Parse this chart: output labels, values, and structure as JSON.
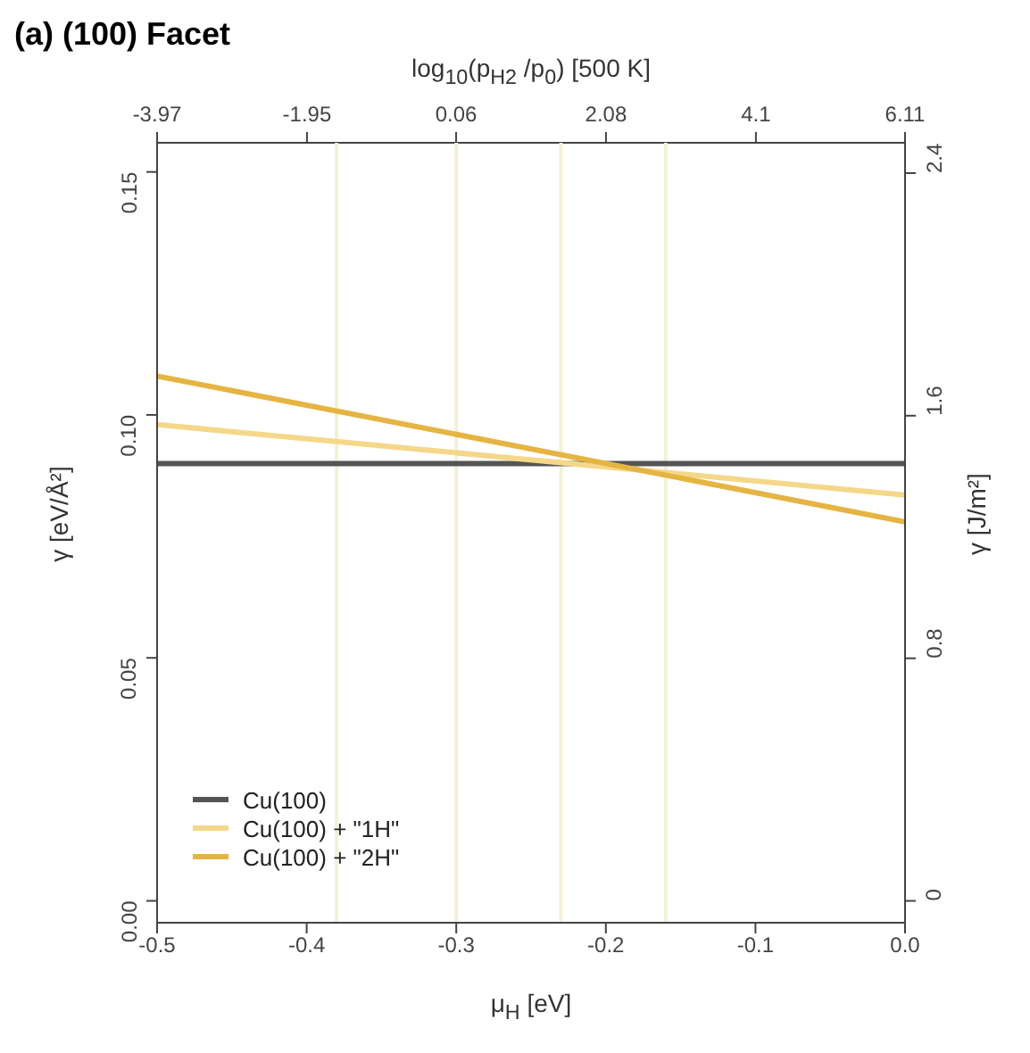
{
  "chart_data": {
    "type": "line",
    "title": "(a) (100) Facet",
    "xlabel": "μ$_{H}$ [eV]",
    "ylabel": "γ [eV/Å²]",
    "y2label": "γ [J/m²]",
    "x2label": "log$_{10}$(p$_{H2}$ /p$_{0}$) [500 K]",
    "x": [
      -0.5,
      0
    ],
    "series": [
      {
        "name": "Cu(100)",
        "color": "#555555",
        "values": [
          0.09,
          0.09
        ]
      },
      {
        "name": "Cu(100) + \"1H\"",
        "color": "#f5d78a",
        "values": [
          0.098,
          0.0835
        ]
      },
      {
        "name": "Cu(100) + \"2H\"",
        "color": "#e6b443",
        "values": [
          0.108,
          0.078
        ]
      }
    ],
    "xlim": [
      -0.5,
      0
    ],
    "xticks": [
      -0.5,
      -0.4,
      -0.3,
      -0.2,
      -0.1,
      {
        "value": 0,
        "label": "0.0"
      }
    ],
    "x2lim": [
      -3.97,
      6.11
    ],
    "x2ticks": [
      -3.97,
      -1.95,
      0.06,
      2.08,
      4.1,
      6.11
    ],
    "ylim": [
      -0.0045,
      0.156
    ],
    "yticks": [
      {
        "value": 0,
        "label": "0.00"
      },
      0.05,
      {
        "value": 0.1,
        "label": "0.10"
      },
      0.15
    ],
    "y2lim": [
      -0.072,
      2.5
    ],
    "y2ticks": [
      0,
      0.8,
      1.6,
      2.4
    ],
    "ref_lines": [
      {
        "axis": "x",
        "value": -0.38,
        "color": "#f3f0d8"
      },
      {
        "axis": "x",
        "value": -0.3,
        "color": "#f3f0d8"
      },
      {
        "axis": "x",
        "value": -0.23,
        "color": "#f3f0d8"
      },
      {
        "axis": "x",
        "value": -0.16,
        "color": "#f3f0d8"
      }
    ],
    "legend": "bottom left",
    "marker": "none",
    "line_style": "solid"
  }
}
